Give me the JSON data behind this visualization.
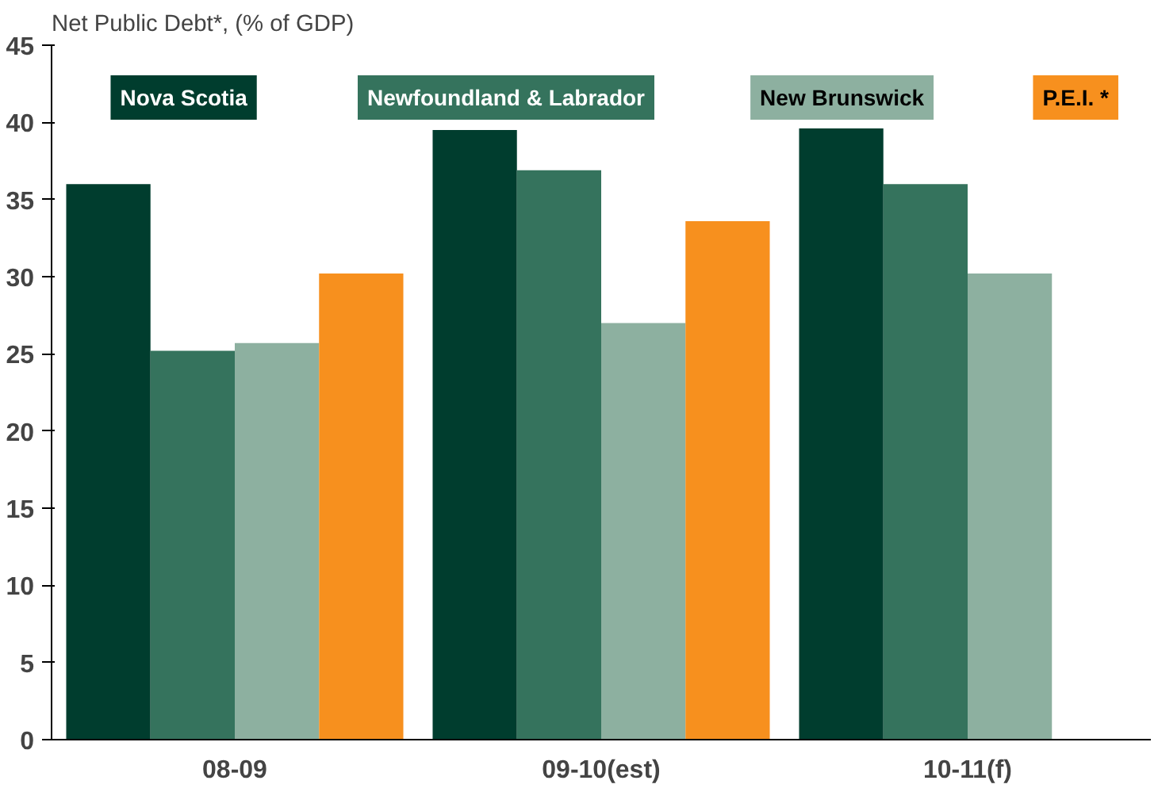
{
  "chart_data": {
    "type": "bar",
    "title": "Net Public Debt*, (% of GDP)",
    "categories": [
      "08-09",
      "09-10(est)",
      "10-11(f)"
    ],
    "series": [
      {
        "name": "Nova Scotia",
        "color": "#003d2e",
        "values": [
          36.0,
          39.5,
          39.6
        ]
      },
      {
        "name": "Newfoundland & Labrador",
        "color": "#35735d",
        "values": [
          25.2,
          36.9,
          36.0
        ]
      },
      {
        "name": "New Brunswick",
        "color": "#8db0a0",
        "values": [
          25.7,
          27.0,
          30.2
        ]
      },
      {
        "name": "P.E.I. *",
        "color": "#f7901e",
        "values": [
          30.2,
          33.6,
          null
        ]
      }
    ],
    "ylim": [
      0,
      45
    ],
    "yticks": [
      0,
      5,
      10,
      15,
      20,
      25,
      30,
      35,
      40,
      45
    ],
    "grid": false,
    "legend": "top"
  }
}
